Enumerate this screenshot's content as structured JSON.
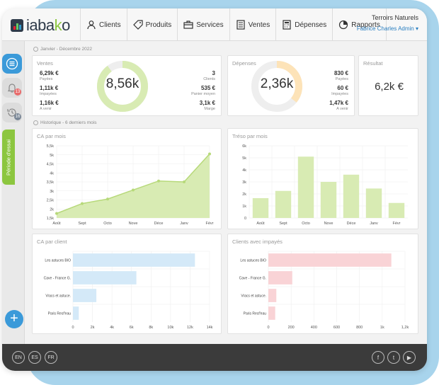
{
  "brand": {
    "logo_text_a": "iaba",
    "logo_text_b": "k",
    "logo_text_c": "o"
  },
  "nav": [
    {
      "label": "Clients",
      "icon": "user-icon"
    },
    {
      "label": "Produits",
      "icon": "tag-icon"
    },
    {
      "label": "Services",
      "icon": "briefcase-icon"
    },
    {
      "label": "Ventes",
      "icon": "register-icon"
    },
    {
      "label": "Dépenses",
      "icon": "calculator-icon"
    },
    {
      "label": "Rapports",
      "icon": "pie-chart-icon"
    }
  ],
  "account": {
    "org": "Terroirs Naturels",
    "user": "Fabrice Charles Admin ▾"
  },
  "sidebar": {
    "trial_label": "Période d'essai",
    "bell_count": "13",
    "history_count": "16"
  },
  "period": {
    "label": "Janvier - Décembre 2022"
  },
  "ventes": {
    "title": "Ventes",
    "total": "8,56k",
    "left": [
      {
        "value": "6,29k €",
        "label": "Payées"
      },
      {
        "value": "1,11k €",
        "label": "Impayées"
      },
      {
        "value": "1,16k €",
        "label": "A venir"
      }
    ],
    "right": [
      {
        "value": "3",
        "label": "Clients"
      },
      {
        "value": "535 €",
        "label": "Panier moyen"
      },
      {
        "value": "3,1k €",
        "label": "Marge"
      }
    ]
  },
  "depenses": {
    "title": "Dépenses",
    "total": "2,36k",
    "right": [
      {
        "value": "830 €",
        "label": "Payées"
      },
      {
        "value": "60 €",
        "label": "Impayées"
      },
      {
        "value": "1,47k €",
        "label": "A venir"
      }
    ]
  },
  "resultat": {
    "title": "Résultat",
    "value": "6,2k €"
  },
  "history": {
    "label": "Historique - 6 derniers mois"
  },
  "colors": {
    "green": "#8cc63f",
    "green_fill": "#d8ebb3",
    "blue_bar": "#d4e9f8",
    "pink_bar": "#f9d3d6",
    "orange": "#fde3b8",
    "accent": "#3b9ad9"
  },
  "chart_data": [
    {
      "type": "area",
      "title": "CA par mois",
      "categories": [
        "Août",
        "Sept",
        "Octo",
        "Nove",
        "Déce",
        "Janv",
        "Févr"
      ],
      "values": [
        1750,
        2300,
        2550,
        3050,
        3550,
        3500,
        5050
      ],
      "yticks": [
        "1,5k",
        "2k",
        "2,5k",
        "3k",
        "3,5k",
        "4k",
        "4,5k",
        "5k",
        "5,5k"
      ],
      "ylim": [
        1500,
        5500
      ]
    },
    {
      "type": "bar",
      "title": "Tréso par mois",
      "categories": [
        "Août",
        "Sept",
        "Octo",
        "Nove",
        "Déce",
        "Janv",
        "Févr"
      ],
      "values": [
        1650,
        2250,
        5100,
        3000,
        3600,
        2450,
        1250
      ],
      "yticks": [
        "0",
        "1k",
        "2k",
        "3k",
        "4k",
        "5k",
        "6k"
      ],
      "ylim": [
        0,
        6000
      ]
    },
    {
      "type": "bar",
      "orientation": "horizontal",
      "title": "CA par client",
      "categories": [
        "Les astuces BIO",
        "Cave - France G.",
        "Vracs et astuce.",
        "Paris Resf'eau"
      ],
      "values": [
        12500,
        6500,
        2400,
        600
      ],
      "xticks": [
        "0",
        "2k",
        "4k",
        "6k",
        "8k",
        "10k",
        "12k",
        "14k"
      ],
      "xlim": [
        0,
        14000
      ]
    },
    {
      "type": "bar",
      "orientation": "horizontal",
      "title": "Clients avec impayés",
      "categories": [
        "Les astuces BIO",
        "Cave - France G.",
        "Vracs et astuce.",
        "Paris Resf'eau"
      ],
      "values": [
        1080,
        210,
        70,
        60
      ],
      "xticks": [
        "0",
        "200",
        "400",
        "600",
        "800",
        "1k",
        "1,2k"
      ],
      "xlim": [
        0,
        1200
      ]
    }
  ],
  "footer": {
    "langs": [
      "EN",
      "ES",
      "FR"
    ],
    "social": [
      {
        "label": "f",
        "icon": "facebook-icon"
      },
      {
        "label": "t",
        "icon": "twitter-icon"
      },
      {
        "label": "▶",
        "icon": "youtube-icon"
      }
    ]
  }
}
